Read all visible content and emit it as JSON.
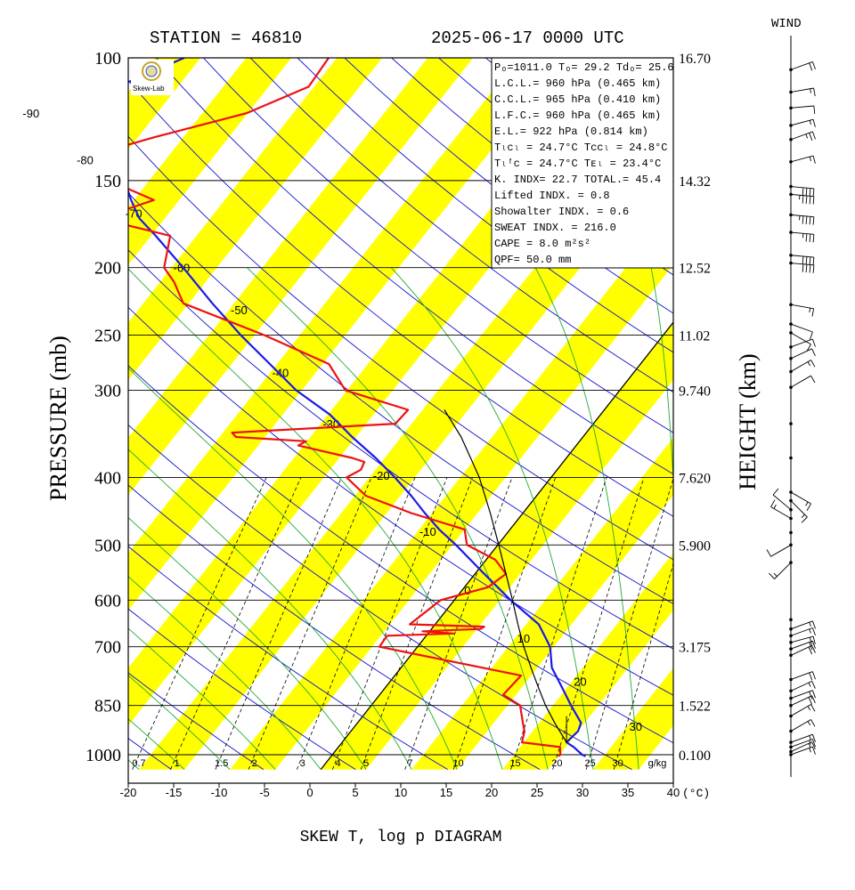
{
  "header": {
    "station": "STATION = 46810",
    "datetime": "2025-06-17 0000 UTC"
  },
  "wind_label": "WIND",
  "footer_title": "SKEW T, log p DIAGRAM",
  "logo_text": "Skew-Lab",
  "chart_data": {
    "type": "line",
    "title": "SKEW T, log p DIAGRAM",
    "ylabel": "PRESSURE (mb)",
    "y2label": "HEIGHT (km)",
    "xlabel_unit": "(°C)",
    "mixing_ratio_unit": "g/kg",
    "xlim": [
      -20,
      40
    ],
    "ylim": [
      1050,
      100
    ],
    "y_scale": "log",
    "x_ticks": [
      "-20",
      "-15",
      "-10",
      "-5",
      "0",
      "5",
      "10",
      "15",
      "20",
      "25",
      "30",
      "35",
      "40"
    ],
    "pressure_levels": [
      {
        "p": 100,
        "label": "100",
        "height": "16.70"
      },
      {
        "p": 150,
        "label": "150",
        "height": "14.32"
      },
      {
        "p": 200,
        "label": "200",
        "height": "12.52"
      },
      {
        "p": 250,
        "label": "250",
        "height": "11.02"
      },
      {
        "p": 300,
        "label": "300",
        "height": "9.740"
      },
      {
        "p": 400,
        "label": "400",
        "height": "7.620"
      },
      {
        "p": 500,
        "label": "500",
        "height": "5.900"
      },
      {
        "p": 600,
        "label": "600",
        "height": ""
      },
      {
        "p": 700,
        "label": "700",
        "height": "3.175"
      },
      {
        "p": 850,
        "label": "850",
        "height": "1.522"
      },
      {
        "p": 1000,
        "label": "1000",
        "height": "0.100"
      }
    ],
    "isotherm_labels": [
      {
        "t": -90,
        "p": 120,
        "text": "-90"
      },
      {
        "t": -80,
        "p": 140,
        "text": "-80"
      },
      {
        "t": -70,
        "p": 167,
        "text": "-70"
      },
      {
        "t": -60,
        "p": 200,
        "text": "-60"
      },
      {
        "t": -50,
        "p": 230,
        "text": "-50"
      },
      {
        "t": -40,
        "p": 283,
        "text": "-40"
      },
      {
        "t": -30,
        "p": 335,
        "text": "-30"
      },
      {
        "t": -20,
        "p": 397,
        "text": "-20"
      },
      {
        "t": -10,
        "p": 478,
        "text": "-10"
      },
      {
        "t": 0,
        "p": 580,
        "text": "0"
      },
      {
        "t": 10,
        "p": 680,
        "text": "10"
      },
      {
        "t": 20,
        "p": 785,
        "text": "20"
      },
      {
        "t": 30,
        "p": 910,
        "text": "30"
      }
    ],
    "mixing_ratio_labels": [
      "0.7",
      "1",
      "1.5",
      "2",
      "3",
      "4",
      "5",
      "7",
      "10",
      "15",
      "20",
      "25",
      "30"
    ],
    "mixing_ratios": [
      0.7,
      1,
      1.5,
      2,
      3,
      4,
      5,
      7,
      10,
      15,
      20,
      25,
      30
    ],
    "series": [
      {
        "name": "Temperature",
        "color": "#1a1ae6",
        "points": [
          [
            1005,
            28.0
          ],
          [
            1000,
            27.5
          ],
          [
            975,
            25.9
          ],
          [
            960,
            24.7
          ],
          [
            925,
            25.0
          ],
          [
            900,
            24.6
          ],
          [
            850,
            22.0
          ],
          [
            800,
            19.4
          ],
          [
            750,
            16.6
          ],
          [
            700,
            14.6
          ],
          [
            650,
            11.4
          ],
          [
            600,
            6.2
          ],
          [
            550,
            1.0
          ],
          [
            500,
            -4.6
          ],
          [
            475,
            -7.8
          ],
          [
            450,
            -10.8
          ],
          [
            425,
            -13.8
          ],
          [
            400,
            -17.2
          ],
          [
            375,
            -21.0
          ],
          [
            350,
            -25.4
          ],
          [
            325,
            -29.8
          ],
          [
            300,
            -35.6
          ],
          [
            275,
            -40.8
          ],
          [
            250,
            -46.5
          ],
          [
            225,
            -52.4
          ],
          [
            200,
            -58.7
          ],
          [
            180,
            -64.5
          ],
          [
            170,
            -67.8
          ],
          [
            160,
            -70.3
          ],
          [
            150,
            -72.7
          ],
          [
            140,
            -75.6
          ],
          [
            130,
            -78.0
          ],
          [
            120,
            -80.8
          ],
          [
            110,
            -81.6
          ],
          [
            100,
            -76.8
          ]
        ]
      },
      {
        "name": "Dewpoint",
        "color": "#ee1111",
        "points": [
          [
            1005,
            25.0
          ],
          [
            1000,
            25.1
          ],
          [
            975,
            24.4
          ],
          [
            960,
            19.8
          ],
          [
            925,
            19.1
          ],
          [
            900,
            18.2
          ],
          [
            850,
            16.4
          ],
          [
            820,
            13.6
          ],
          [
            770,
            13.9
          ],
          [
            700,
            -4.2
          ],
          [
            675,
            -4.3
          ],
          [
            670,
            2.8
          ],
          [
            665,
            -0.8
          ],
          [
            660,
            5.4
          ],
          [
            655,
            5.6
          ],
          [
            650,
            -2.8
          ],
          [
            600,
            -1.5
          ],
          [
            575,
            2.6
          ],
          [
            550,
            3.4
          ],
          [
            525,
            1.0
          ],
          [
            500,
            -3.4
          ],
          [
            475,
            -5.0
          ],
          [
            450,
            -12.3
          ],
          [
            425,
            -18.8
          ],
          [
            400,
            -22.5
          ],
          [
            390,
            -21.6
          ],
          [
            380,
            -21.9
          ],
          [
            375,
            -23.6
          ],
          [
            360,
            -30.6
          ],
          [
            355,
            -30.1
          ],
          [
            350,
            -38.2
          ],
          [
            345,
            -39.0
          ],
          [
            335,
            -21.8
          ],
          [
            320,
            -21.6
          ],
          [
            300,
            -30.2
          ],
          [
            275,
            -34.3
          ],
          [
            250,
            -43.9
          ],
          [
            225,
            -55.6
          ],
          [
            210,
            -58.4
          ],
          [
            200,
            -60.8
          ],
          [
            180,
            -62.9
          ],
          [
            170,
            -72.2
          ],
          [
            160,
            -67.8
          ],
          [
            150,
            -74.4
          ],
          [
            140,
            -79.8
          ],
          [
            130,
            -73.2
          ],
          [
            120,
            -65.1
          ],
          [
            110,
            -60.6
          ],
          [
            100,
            -60.9
          ]
        ]
      },
      {
        "name": "Parcel",
        "color": "#000000",
        "points": [
          [
            960,
            24.7
          ],
          [
            900,
            21.7
          ],
          [
            850,
            19.2
          ],
          [
            800,
            16.8
          ],
          [
            750,
            14.3
          ],
          [
            700,
            11.7
          ],
          [
            650,
            9.1
          ],
          [
            600,
            6.4
          ],
          [
            550,
            3.4
          ],
          [
            500,
            0.1
          ],
          [
            450,
            -3.6
          ],
          [
            400,
            -7.9
          ],
          [
            350,
            -13.4
          ],
          [
            320,
            -17.6
          ]
        ]
      }
    ],
    "indices": [
      "Pₒ=1011.0 Tₒ= 29.2 Tdₒ= 25.6",
      "L.C.L.= 960 hPa (0.465 km)",
      "C.C.L.= 965 hPa (0.410 km)",
      "L.F.C.= 960 hPa (0.465 km)",
      "E.L.= 922 hPa (0.814 km)",
      "Tₗᴄₗ = 24.7°C  Tᴄᴄₗ = 24.8°C",
      "Tₗᶠᴄ = 24.7°C  Tᴇₗ = 23.4°C",
      "K. INDX= 22.7  TOTAL.= 45.4",
      "Lifted INDX. =   0.8",
      "Showalter INDX. =    0.6",
      "SWEAT INDX. =  216.0",
      "CAPE =     8.0 m²s²",
      "QPF= 50.0 mm"
    ],
    "wind_barbs": [
      {
        "p": 104,
        "dir": 250,
        "spd": 20
      },
      {
        "p": 112,
        "dir": 260,
        "spd": 15
      },
      {
        "p": 118,
        "dir": 265,
        "spd": 10
      },
      {
        "p": 125,
        "dir": 255,
        "spd": 15
      },
      {
        "p": 131,
        "dir": 250,
        "spd": 25
      },
      {
        "p": 141,
        "dir": 255,
        "spd": 15
      },
      {
        "p": 153,
        "dir": 275,
        "spd": 40
      },
      {
        "p": 157,
        "dir": 275,
        "spd": 45
      },
      {
        "p": 168,
        "dir": 275,
        "spd": 45
      },
      {
        "p": 178,
        "dir": 275,
        "spd": 35
      },
      {
        "p": 192,
        "dir": 275,
        "spd": 40
      },
      {
        "p": 197,
        "dir": 275,
        "spd": 40
      },
      {
        "p": 226,
        "dir": 280,
        "spd": 15
      },
      {
        "p": 241,
        "dir": 290,
        "spd": 10
      },
      {
        "p": 248,
        "dir": 300,
        "spd": 10
      },
      {
        "p": 260,
        "dir": 250,
        "spd": 10
      },
      {
        "p": 270,
        "dir": 245,
        "spd": 10
      },
      {
        "p": 282,
        "dir": 240,
        "spd": 15
      },
      {
        "p": 297,
        "dir": 240,
        "spd": 10
      },
      {
        "p": 335,
        "dir": 0,
        "spd": 0
      },
      {
        "p": 375,
        "dir": 0,
        "spd": 0
      },
      {
        "p": 420,
        "dir": 300,
        "spd": 15
      },
      {
        "p": 432,
        "dir": 315,
        "spd": 15
      },
      {
        "p": 445,
        "dir": 130,
        "spd": 10
      },
      {
        "p": 458,
        "dir": 120,
        "spd": 15
      },
      {
        "p": 480,
        "dir": 0,
        "spd": 0
      },
      {
        "p": 500,
        "dir": 60,
        "spd": 10
      },
      {
        "p": 530,
        "dir": 45,
        "spd": 15
      },
      {
        "p": 640,
        "dir": 0,
        "spd": 0
      },
      {
        "p": 660,
        "dir": 250,
        "spd": 15
      },
      {
        "p": 675,
        "dir": 250,
        "spd": 15
      },
      {
        "p": 690,
        "dir": 255,
        "spd": 20
      },
      {
        "p": 705,
        "dir": 250,
        "spd": 20
      },
      {
        "p": 720,
        "dir": 245,
        "spd": 20
      },
      {
        "p": 780,
        "dir": 250,
        "spd": 20
      },
      {
        "p": 810,
        "dir": 245,
        "spd": 15
      },
      {
        "p": 830,
        "dir": 250,
        "spd": 20
      },
      {
        "p": 850,
        "dir": 245,
        "spd": 20
      },
      {
        "p": 880,
        "dir": 240,
        "spd": 15
      },
      {
        "p": 925,
        "dir": 240,
        "spd": 15
      },
      {
        "p": 960,
        "dir": 250,
        "spd": 15
      },
      {
        "p": 975,
        "dir": 250,
        "spd": 15
      },
      {
        "p": 990,
        "dir": 245,
        "spd": 15
      },
      {
        "p": 1000,
        "dir": 250,
        "spd": 15
      }
    ]
  }
}
